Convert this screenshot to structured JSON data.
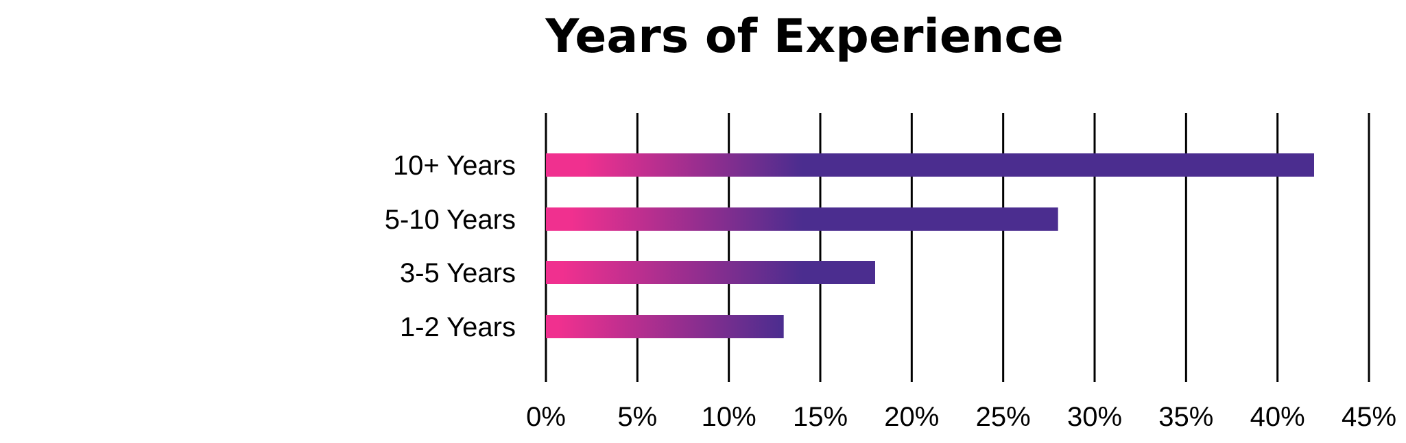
{
  "chart_data": {
    "type": "bar",
    "orientation": "horizontal",
    "title": "Years of Experience",
    "xlabel": "",
    "ylabel": "",
    "categories": [
      "10+ Years",
      "5-10 Years",
      "3-5 Years",
      "1-2 Years"
    ],
    "values": [
      42,
      28,
      18,
      13
    ],
    "unit": "%",
    "xlim": [
      0,
      45
    ],
    "xticks": [
      0,
      5,
      10,
      15,
      20,
      25,
      30,
      35,
      40,
      45
    ],
    "xtick_labels": [
      "0%",
      "5%",
      "10%",
      "15%",
      "20%",
      "25%",
      "30%",
      "35%",
      "40%",
      "45%"
    ],
    "grid": "vertical",
    "legend": "none",
    "bar_gradient": [
      "#F0308F",
      "#4B2D8F"
    ]
  }
}
